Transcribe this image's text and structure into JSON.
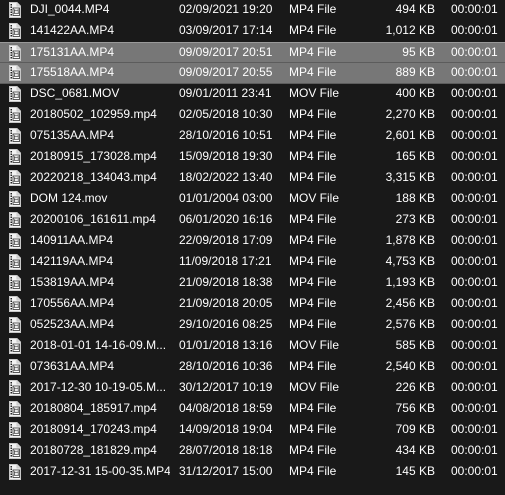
{
  "colors": {
    "background": "#191919",
    "text": "#ffffff",
    "selected_row": "#777777"
  },
  "icon_name": "video-file-icon",
  "files": [
    {
      "name": "DJI_0044.MP4",
      "date": "02/09/2021 19:20",
      "type": "MP4 File",
      "size": "494 KB",
      "length": "00:00:01",
      "selected": false
    },
    {
      "name": "141422AA.MP4",
      "date": "03/09/2017 17:14",
      "type": "MP4 File",
      "size": "1,012 KB",
      "length": "00:00:01",
      "selected": false
    },
    {
      "name": "175131AA.MP4",
      "date": "09/09/2017 20:51",
      "type": "MP4 File",
      "size": "95 KB",
      "length": "00:00:01",
      "selected": true
    },
    {
      "name": "175518AA.MP4",
      "date": "09/09/2017 20:55",
      "type": "MP4 File",
      "size": "889 KB",
      "length": "00:00:01",
      "selected": true
    },
    {
      "name": "DSC_0681.MOV",
      "date": "09/01/2011 23:41",
      "type": "MOV File",
      "size": "400 KB",
      "length": "00:00:01",
      "selected": false
    },
    {
      "name": "20180502_102959.mp4",
      "date": "02/05/2018 10:30",
      "type": "MP4 File",
      "size": "2,270 KB",
      "length": "00:00:01",
      "selected": false
    },
    {
      "name": "075135AA.MP4",
      "date": "28/10/2016 10:51",
      "type": "MP4 File",
      "size": "2,601 KB",
      "length": "00:00:01",
      "selected": false
    },
    {
      "name": "20180915_173028.mp4",
      "date": "15/09/2018 19:30",
      "type": "MP4 File",
      "size": "165 KB",
      "length": "00:00:01",
      "selected": false
    },
    {
      "name": "20220218_134043.mp4",
      "date": "18/02/2022 13:40",
      "type": "MP4 File",
      "size": "3,315 KB",
      "length": "00:00:01",
      "selected": false
    },
    {
      "name": "DOM 124.mov",
      "date": "01/01/2004 03:00",
      "type": "MOV File",
      "size": "188 KB",
      "length": "00:00:01",
      "selected": false
    },
    {
      "name": "20200106_161611.mp4",
      "date": "06/01/2020 16:16",
      "type": "MP4 File",
      "size": "273 KB",
      "length": "00:00:01",
      "selected": false
    },
    {
      "name": "140911AA.MP4",
      "date": "22/09/2018 17:09",
      "type": "MP4 File",
      "size": "1,878 KB",
      "length": "00:00:01",
      "selected": false
    },
    {
      "name": "142119AA.MP4",
      "date": "11/09/2018 17:21",
      "type": "MP4 File",
      "size": "4,753 KB",
      "length": "00:00:01",
      "selected": false
    },
    {
      "name": "153819AA.MP4",
      "date": "21/09/2018 18:38",
      "type": "MP4 File",
      "size": "1,193 KB",
      "length": "00:00:01",
      "selected": false
    },
    {
      "name": "170556AA.MP4",
      "date": "21/09/2018 20:05",
      "type": "MP4 File",
      "size": "2,456 KB",
      "length": "00:00:01",
      "selected": false
    },
    {
      "name": "052523AA.MP4",
      "date": "29/10/2016 08:25",
      "type": "MP4 File",
      "size": "2,576 KB",
      "length": "00:00:01",
      "selected": false
    },
    {
      "name": "2018-01-01 14-16-09.M...",
      "date": "01/01/2018 13:16",
      "type": "MOV File",
      "size": "585 KB",
      "length": "00:00:01",
      "selected": false
    },
    {
      "name": "073631AA.MP4",
      "date": "28/10/2016 10:36",
      "type": "MP4 File",
      "size": "2,540 KB",
      "length": "00:00:01",
      "selected": false
    },
    {
      "name": "2017-12-30 10-19-05.M...",
      "date": "30/12/2017 10:19",
      "type": "MOV File",
      "size": "226 KB",
      "length": "00:00:01",
      "selected": false
    },
    {
      "name": "20180804_185917.mp4",
      "date": "04/08/2018 18:59",
      "type": "MP4 File",
      "size": "756 KB",
      "length": "00:00:01",
      "selected": false
    },
    {
      "name": "20180914_170243.mp4",
      "date": "14/09/2018 19:04",
      "type": "MP4 File",
      "size": "709 KB",
      "length": "00:00:01",
      "selected": false
    },
    {
      "name": "20180728_181829.mp4",
      "date": "28/07/2018 18:18",
      "type": "MP4 File",
      "size": "434 KB",
      "length": "00:00:01",
      "selected": false
    },
    {
      "name": "2017-12-31 15-00-35.MP4",
      "date": "31/12/2017 15:00",
      "type": "MP4 File",
      "size": "145 KB",
      "length": "00:00:01",
      "selected": false
    }
  ]
}
